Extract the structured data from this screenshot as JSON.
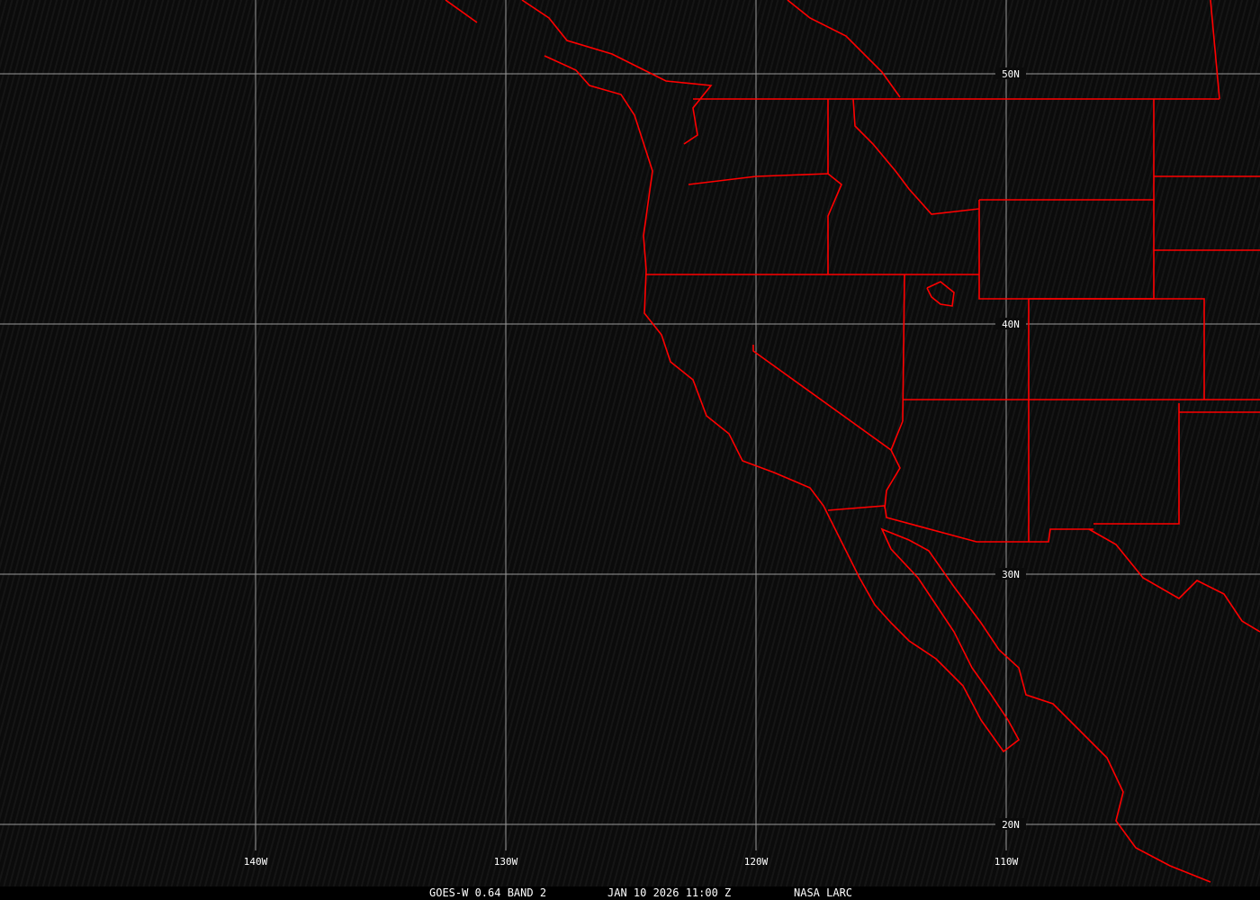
{
  "map": {
    "type": "satellite-image",
    "projection": "lat-lon",
    "background_color": "#0b0b0b",
    "grid_color": "#9a9a9a",
    "boundary_color": "#ff0000",
    "longitude_labels": [
      "140W",
      "130W",
      "120W",
      "110W"
    ],
    "longitude_values": [
      -140,
      -130,
      -120,
      -110
    ],
    "latitude_labels": [
      "50N",
      "40N",
      "30N",
      "20N"
    ],
    "latitude_values": [
      50,
      40,
      30,
      20
    ]
  },
  "caption": {
    "product": "GOES-W 0.64 BAND 2",
    "datetime": "JAN 10 2026 11:00 Z",
    "source": "NASA LARC"
  }
}
